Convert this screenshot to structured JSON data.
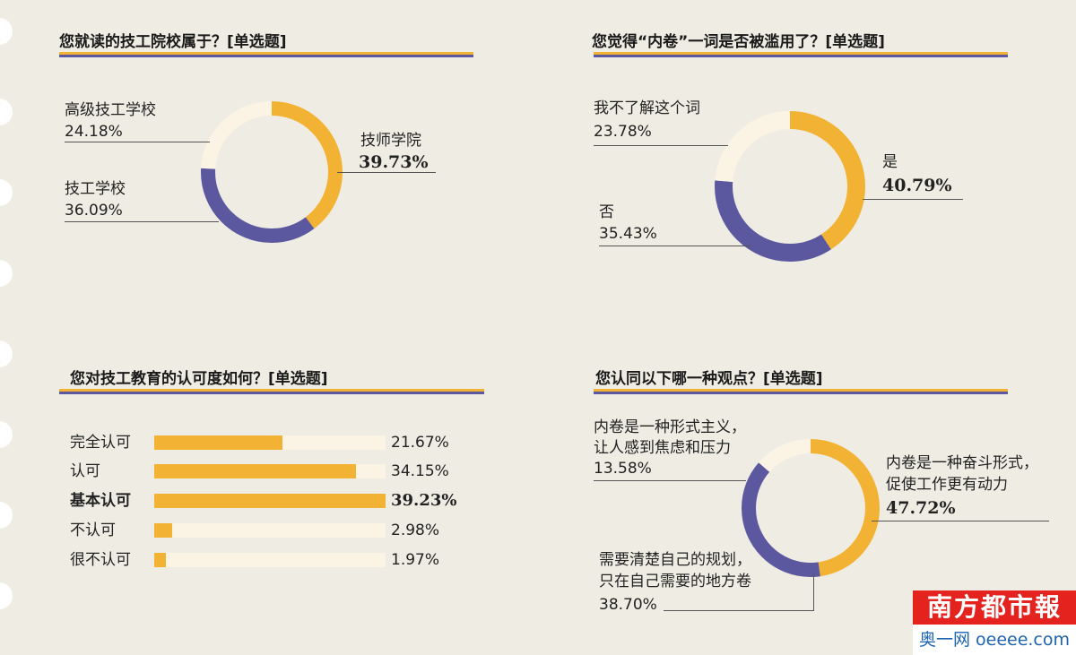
{
  "chart_data": [
    {
      "type": "pie",
      "title": "您就读的技工院校属于？[单选题]",
      "slices": [
        {
          "label": "技师学院",
          "value": 39.73,
          "pct_text": "39.73%",
          "color": "#f2b233"
        },
        {
          "label": "技工学校",
          "value": 36.09,
          "pct_text": "36.09%",
          "color": "#5c58a0"
        },
        {
          "label": "高级技工学校",
          "value": 24.18,
          "pct_text": "24.18%",
          "color": "#fbf4e4"
        }
      ]
    },
    {
      "type": "pie",
      "title": "您觉得“内卷”一词是否被滥用了？[单选题]",
      "slices": [
        {
          "label": "是",
          "value": 40.79,
          "pct_text": "40.79%",
          "color": "#f2b233"
        },
        {
          "label": "否",
          "value": 35.43,
          "pct_text": "35.43%",
          "color": "#5c58a0"
        },
        {
          "label": "我不了解这个词",
          "value": 23.78,
          "pct_text": "23.78%",
          "color": "#fbf4e4"
        }
      ]
    },
    {
      "type": "bar",
      "title": "您对技工教育的认可度如何？[单选题]",
      "categories": [
        "完全认可",
        "认可",
        "基本认可",
        "不认可",
        "很不认可"
      ],
      "values": [
        21.67,
        34.15,
        39.23,
        2.98,
        1.97
      ],
      "value_texts": [
        "21.67%",
        "34.15%",
        "39.23%",
        "2.98%",
        "1.97%"
      ],
      "xlim": [
        0,
        39.23
      ]
    },
    {
      "type": "pie",
      "title": "您认同以下哪一种观点？[单选题]",
      "slices": [
        {
          "label": "内卷是一种奋斗形式，促使工作更有动力",
          "label_lines": [
            "内卷是一种奋斗形式，",
            "促使工作更有动力"
          ],
          "value": 47.72,
          "pct_text": "47.72%",
          "color": "#f2b233"
        },
        {
          "label": "需要清楚自己的规划，只在自己需要的地方卷",
          "label_lines": [
            "需要清楚自己的规划，",
            "只在自己需要的地方卷"
          ],
          "value": 38.7,
          "pct_text": "38.70%",
          "color": "#5c58a0"
        },
        {
          "label": "内卷是一种形式主义，让人感到焦虑和压力",
          "label_lines": [
            "内卷是一种形式主义，",
            "让人感到焦虑和压力"
          ],
          "value": 13.58,
          "pct_text": "13.58%",
          "color": "#fbf4e4"
        }
      ]
    }
  ],
  "branding": {
    "logo_text": "南方都市報",
    "site_text": "奥一网 oeeee.com"
  }
}
